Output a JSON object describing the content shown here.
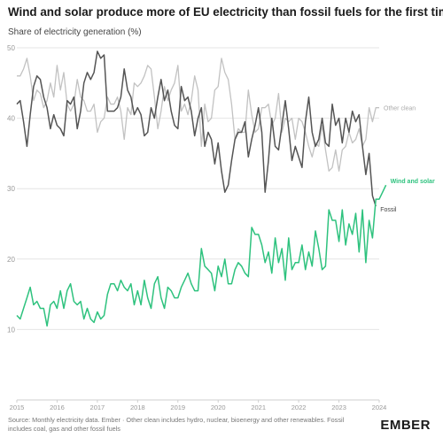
{
  "header": {
    "title": "Wind and solar produce more of EU electricity than fossil fuels for the first time",
    "subtitle": "Share of electricity generation (%)"
  },
  "footer": {
    "source": "Source: Monthly electricity data. Ember · Other clean includes hydro, nuclear, bioenergy and other renewables. Fossil includes coal, gas and other fossil fuels",
    "logo": "EMBER"
  },
  "colors": {
    "wind_solar": "#2ec27e",
    "fossil": "#555555",
    "other_clean": "#c2c2c2",
    "grid": "#e4e4e4",
    "tick": "#999999"
  },
  "chart_data": {
    "type": "line",
    "x_unit": "month",
    "x_start": "2015-01",
    "ylim": [
      0,
      50
    ],
    "y_ticks": [
      10,
      20,
      30,
      40,
      50
    ],
    "x_ticks": [
      "2015",
      "2016",
      "2017",
      "2018",
      "2019",
      "2020",
      "2021",
      "2022",
      "2023",
      "2024"
    ],
    "grid": true,
    "legend": "inline labels at line ends",
    "series": [
      {
        "name": "Wind and solar",
        "color_key": "wind_solar",
        "values": [
          12,
          11.5,
          13,
          14.5,
          16,
          13.5,
          14,
          13,
          13,
          10.5,
          13.5,
          14,
          13,
          15.5,
          13,
          15.5,
          16.5,
          14,
          13.5,
          14,
          11.5,
          13,
          11.5,
          11,
          12.5,
          11.5,
          12,
          15,
          16.5,
          16.5,
          15.5,
          17,
          16,
          15.5,
          16.5,
          13.5,
          15.5,
          13.5,
          17,
          14.5,
          13,
          16.5,
          17.5,
          14.5,
          13,
          16,
          15.5,
          14.5,
          14.5,
          16,
          17,
          18,
          16.5,
          15.5,
          15.5,
          21.5,
          19,
          18.5,
          18,
          15.5,
          19,
          17.5,
          20,
          16.5,
          16.5,
          18.5,
          19.5,
          19,
          18,
          17.5,
          24.5,
          23.5,
          23.5,
          22,
          19.5,
          21,
          18,
          23,
          19.5,
          21.5,
          17,
          23,
          18.5,
          19.5,
          19.5,
          22,
          18.5,
          21,
          19,
          24,
          21.5,
          18.5,
          19,
          27,
          25.5,
          25.5,
          22.5,
          27,
          22,
          25,
          23.5,
          26.5,
          21,
          27,
          19.5,
          25.5,
          23,
          28.5,
          28.5,
          29.5,
          30.5
        ]
      },
      {
        "name": "Fossil",
        "color_key": "fossil",
        "values": [
          42,
          42.5,
          39.5,
          36,
          40.5,
          44.5,
          46,
          45.5,
          43,
          41.5,
          38.5,
          40.5,
          39,
          38.5,
          37.5,
          42.5,
          42,
          43,
          38.5,
          41,
          45,
          46.5,
          45.5,
          46.5,
          49.5,
          48.5,
          49,
          41,
          41,
          41,
          41.5,
          43,
          47,
          44,
          43,
          40.5,
          41.5,
          40.5,
          37.5,
          38,
          41.5,
          40,
          43,
          45.5,
          42.5,
          44,
          41,
          39,
          38.5,
          44.5,
          42.5,
          43,
          41,
          37.5,
          40,
          41.5,
          36,
          38,
          37,
          33.5,
          36.5,
          32.5,
          29.5,
          30.5,
          34,
          37,
          38,
          38,
          39.5,
          34.5,
          37,
          39,
          41.5,
          38,
          29.5,
          34,
          40,
          36,
          35.5,
          39,
          42.5,
          38.5,
          34,
          36,
          34.5,
          33,
          39.5,
          43,
          38,
          36,
          37,
          40,
          36.5,
          36,
          42,
          39,
          40,
          36.5,
          40,
          38,
          41,
          39.5,
          40.5,
          36,
          32,
          35,
          29,
          27.5
        ]
      },
      {
        "name": "Other clean",
        "color_key": "other_clean",
        "values": [
          46,
          46,
          47,
          48.5,
          46,
          42.5,
          44,
          43.5,
          41.5,
          42.5,
          45,
          43,
          47.5,
          44,
          46.5,
          42,
          41,
          42,
          45.5,
          43,
          42.5,
          41,
          41,
          42,
          38,
          39.5,
          40,
          43,
          42,
          42,
          43,
          41,
          37,
          41.5,
          40.5,
          45,
          44.5,
          45,
          46,
          47.5,
          47,
          43,
          38.5,
          41,
          44.5,
          42.5,
          44,
          45,
          47.5,
          41,
          42,
          40.5,
          42.5,
          46,
          44,
          36,
          42,
          39.5,
          40,
          44,
          44.5,
          48.5,
          46.5,
          45.5,
          42,
          37,
          38.5,
          38,
          38,
          44,
          40.5,
          38,
          38.5,
          41.5,
          41.5,
          42,
          39,
          40,
          43.5,
          38,
          40,
          39.5,
          40,
          37,
          40,
          39.5,
          38,
          36,
          34.5,
          36.5,
          36,
          39,
          35.5,
          32.5,
          33,
          35.5,
          32.5,
          35.5,
          36,
          38,
          36.5,
          37,
          38.5,
          36,
          37,
          41.5,
          39.5,
          41.5,
          41.5
        ]
      }
    ],
    "series_labels": [
      "Wind and solar",
      "Other clean",
      "Fossil"
    ]
  }
}
